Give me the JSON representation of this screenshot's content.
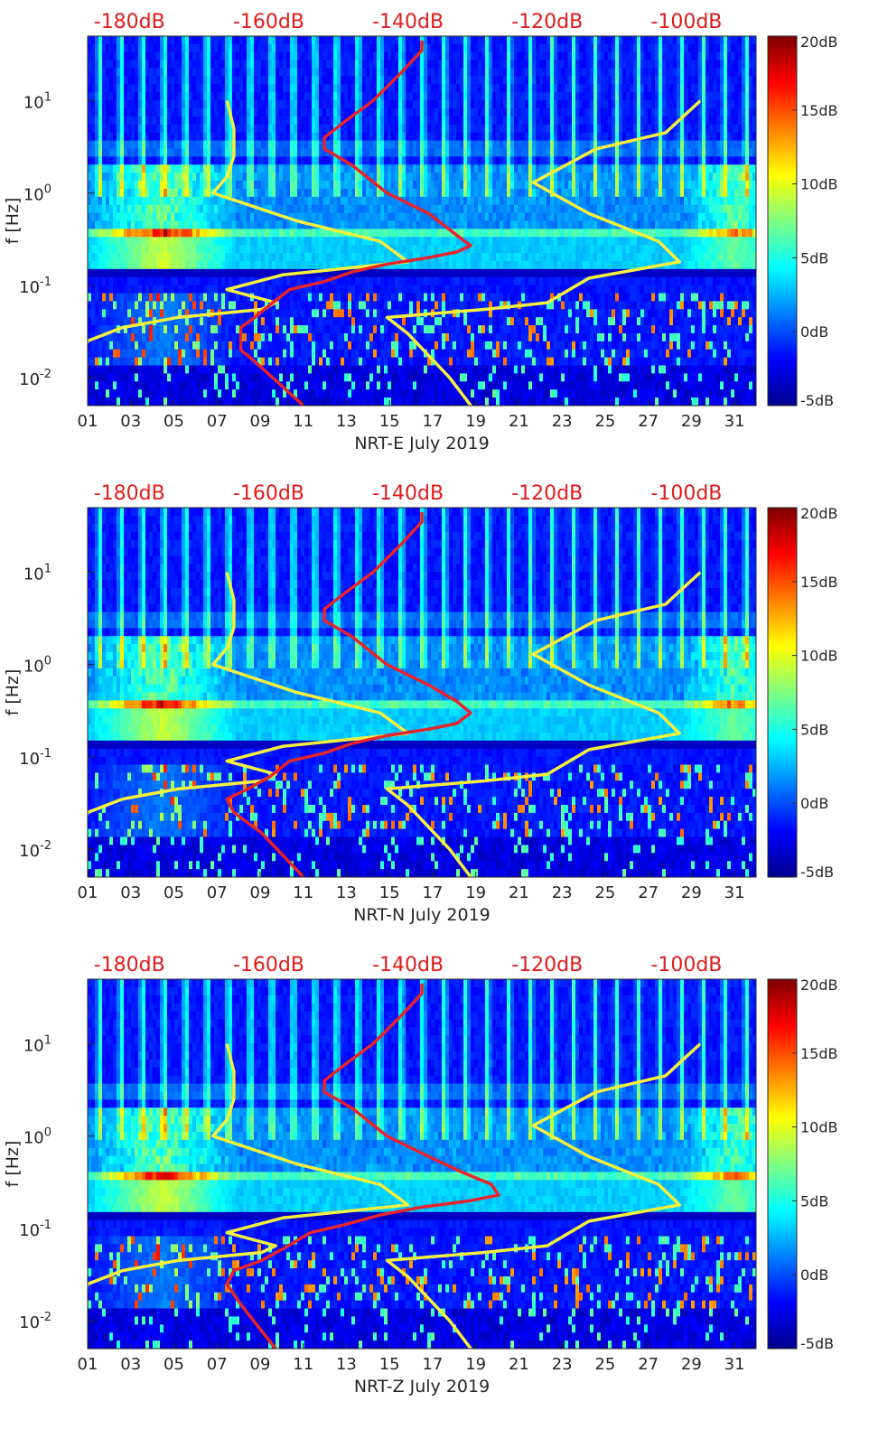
{
  "colors": {
    "red_curve": "#e8242a",
    "yellow_curve": "#f5f03c",
    "top_axis_text": "#e01b1b",
    "axis_text": "#262626",
    "colormap": [
      "#00008f",
      "#0000ff",
      "#0080ff",
      "#00ffff",
      "#80ff80",
      "#ffff00",
      "#ff8000",
      "#ff0000",
      "#800000"
    ]
  },
  "chart_data": [
    {
      "type": "heatmap",
      "panel": "NRT-E",
      "xlabel": "NRT-E July 2019",
      "ylabel": "f [Hz]",
      "x_ticks": [
        "01",
        "03",
        "05",
        "07",
        "09",
        "11",
        "13",
        "15",
        "17",
        "19",
        "21",
        "23",
        "25",
        "27",
        "29",
        "31"
      ],
      "y_ticks": [
        {
          "f": 0.01,
          "base": "10",
          "exp": "-2"
        },
        {
          "f": 0.1,
          "base": "10",
          "exp": "-1"
        },
        {
          "f": 1,
          "base": "10",
          "exp": "0"
        },
        {
          "f": 10,
          "base": "10",
          "exp": "1"
        }
      ],
      "top_ticks": [
        {
          "db": -180,
          "label": "-180dB"
        },
        {
          "db": -160,
          "label": "-160dB"
        },
        {
          "db": -140,
          "label": "-140dB"
        },
        {
          "db": -120,
          "label": "-120dB"
        },
        {
          "db": -100,
          "label": "-100dB"
        }
      ],
      "colorbar": {
        "min": -5,
        "max": 20,
        "ticks": [
          "20dB",
          "15dB",
          "10dB",
          "5dB",
          "0dB",
          "-5dB"
        ],
        "tick_values": [
          20,
          15,
          10,
          5,
          0,
          -5
        ]
      },
      "xlim": [
        1,
        32
      ],
      "ylim": [
        0.005,
        50
      ],
      "db_lim": [
        -186,
        -90
      ],
      "red_curve": [
        [
          -155,
          0.005
        ],
        [
          -162,
          0.015
        ],
        [
          -164,
          0.02
        ],
        [
          -164,
          0.035
        ],
        [
          -162,
          0.045
        ],
        [
          -160,
          0.06
        ],
        [
          -157,
          0.09
        ],
        [
          -152,
          0.11
        ],
        [
          -148,
          0.14
        ],
        [
          -143,
          0.17
        ],
        [
          -137,
          0.2
        ],
        [
          -133,
          0.23
        ],
        [
          -131,
          0.27
        ],
        [
          -133,
          0.35
        ],
        [
          -137,
          0.6
        ],
        [
          -143,
          1
        ],
        [
          -148,
          2
        ],
        [
          -152,
          3
        ],
        [
          -152,
          4
        ],
        [
          -149,
          6
        ],
        [
          -145,
          10
        ],
        [
          -141,
          20
        ],
        [
          -138,
          35
        ],
        [
          -138,
          45
        ]
      ],
      "yellow_curves": [
        [
          [
            -186,
            0.004
          ],
          [
            -187,
            0.01
          ],
          [
            -187,
            0.015
          ],
          [
            -186,
            0.025
          ],
          [
            -181,
            0.035
          ],
          [
            -173,
            0.045
          ],
          [
            -161,
            0.055
          ],
          [
            -159,
            0.065
          ],
          [
            -166,
            0.09
          ],
          [
            -158,
            0.13
          ],
          [
            -140,
            0.18
          ],
          [
            -144,
            0.3
          ],
          [
            -156,
            0.5
          ],
          [
            -168,
            1
          ],
          [
            -166,
            1.5
          ],
          [
            -165,
            2.5
          ],
          [
            -165,
            5
          ],
          [
            -166,
            10
          ]
        ],
        [
          [
            -130,
            0.004
          ],
          [
            -134,
            0.01
          ],
          [
            -140,
            0.03
          ],
          [
            -143,
            0.045
          ],
          [
            -129,
            0.055
          ],
          [
            -120,
            0.065
          ],
          [
            -114,
            0.12
          ],
          [
            -101,
            0.18
          ],
          [
            -104,
            0.3
          ],
          [
            -114,
            0.6
          ],
          [
            -122,
            1.3
          ],
          [
            -113,
            3
          ],
          [
            -103,
            4.5
          ],
          [
            -98,
            10
          ]
        ]
      ]
    },
    {
      "type": "heatmap",
      "panel": "NRT-N",
      "xlabel": "NRT-N July 2019",
      "ylabel": "f [Hz]",
      "x_ticks": [
        "01",
        "03",
        "05",
        "07",
        "09",
        "11",
        "13",
        "15",
        "17",
        "19",
        "21",
        "23",
        "25",
        "27",
        "29",
        "31"
      ],
      "y_ticks": [
        {
          "f": 0.01,
          "base": "10",
          "exp": "-2"
        },
        {
          "f": 0.1,
          "base": "10",
          "exp": "-1"
        },
        {
          "f": 1,
          "base": "10",
          "exp": "0"
        },
        {
          "f": 10,
          "base": "10",
          "exp": "1"
        }
      ],
      "top_ticks": [
        {
          "db": -180,
          "label": "-180dB"
        },
        {
          "db": -160,
          "label": "-160dB"
        },
        {
          "db": -140,
          "label": "-140dB"
        },
        {
          "db": -120,
          "label": "-120dB"
        },
        {
          "db": -100,
          "label": "-100dB"
        }
      ],
      "colorbar": {
        "min": -5,
        "max": 20,
        "ticks": [
          "20dB",
          "15dB",
          "10dB",
          "5dB",
          "0dB",
          "-5dB"
        ],
        "tick_values": [
          20,
          15,
          10,
          5,
          0,
          -5
        ]
      },
      "xlim": [
        1,
        32
      ],
      "ylim": [
        0.005,
        50
      ],
      "db_lim": [
        -186,
        -90
      ],
      "red_curve": [
        [
          -155,
          0.005
        ],
        [
          -161,
          0.015
        ],
        [
          -165,
          0.025
        ],
        [
          -166,
          0.035
        ],
        [
          -163,
          0.045
        ],
        [
          -160,
          0.06
        ],
        [
          -157,
          0.09
        ],
        [
          -152,
          0.11
        ],
        [
          -148,
          0.14
        ],
        [
          -143,
          0.17
        ],
        [
          -137,
          0.2
        ],
        [
          -133,
          0.23
        ],
        [
          -131,
          0.3
        ],
        [
          -133,
          0.4
        ],
        [
          -137,
          0.6
        ],
        [
          -143,
          1
        ],
        [
          -148,
          2
        ],
        [
          -152,
          3
        ],
        [
          -152,
          4
        ],
        [
          -149,
          6
        ],
        [
          -145,
          10
        ],
        [
          -141,
          20
        ],
        [
          -138,
          35
        ],
        [
          -138,
          45
        ]
      ],
      "yellow_curves": [
        [
          [
            -186,
            0.004
          ],
          [
            -187,
            0.01
          ],
          [
            -187,
            0.015
          ],
          [
            -186,
            0.025
          ],
          [
            -181,
            0.035
          ],
          [
            -173,
            0.045
          ],
          [
            -161,
            0.055
          ],
          [
            -159,
            0.065
          ],
          [
            -166,
            0.09
          ],
          [
            -158,
            0.13
          ],
          [
            -140,
            0.18
          ],
          [
            -144,
            0.3
          ],
          [
            -156,
            0.5
          ],
          [
            -168,
            1
          ],
          [
            -166,
            1.5
          ],
          [
            -165,
            2.5
          ],
          [
            -165,
            5
          ],
          [
            -166,
            10
          ]
        ],
        [
          [
            -130,
            0.004
          ],
          [
            -134,
            0.01
          ],
          [
            -140,
            0.03
          ],
          [
            -143,
            0.045
          ],
          [
            -129,
            0.055
          ],
          [
            -120,
            0.065
          ],
          [
            -114,
            0.12
          ],
          [
            -101,
            0.18
          ],
          [
            -104,
            0.3
          ],
          [
            -114,
            0.6
          ],
          [
            -122,
            1.3
          ],
          [
            -113,
            3
          ],
          [
            -103,
            4.5
          ],
          [
            -98,
            10
          ]
        ]
      ]
    },
    {
      "type": "heatmap",
      "panel": "NRT-Z",
      "xlabel": "NRT-Z July 2019",
      "ylabel": "f [Hz]",
      "x_ticks": [
        "01",
        "03",
        "05",
        "07",
        "09",
        "11",
        "13",
        "15",
        "17",
        "19",
        "21",
        "23",
        "25",
        "27",
        "29",
        "31"
      ],
      "y_ticks": [
        {
          "f": 0.01,
          "base": "10",
          "exp": "-2"
        },
        {
          "f": 0.1,
          "base": "10",
          "exp": "-1"
        },
        {
          "f": 1,
          "base": "10",
          "exp": "0"
        },
        {
          "f": 10,
          "base": "10",
          "exp": "1"
        }
      ],
      "top_ticks": [
        {
          "db": -180,
          "label": "-180dB"
        },
        {
          "db": -160,
          "label": "-160dB"
        },
        {
          "db": -140,
          "label": "-140dB"
        },
        {
          "db": -120,
          "label": "-120dB"
        },
        {
          "db": -100,
          "label": "-100dB"
        }
      ],
      "colorbar": {
        "min": -5,
        "max": 20,
        "ticks": [
          "20dB",
          "15dB",
          "10dB",
          "5dB",
          "0dB",
          "-5dB"
        ],
        "tick_values": [
          20,
          15,
          10,
          5,
          0,
          -5
        ]
      },
      "xlim": [
        1,
        32
      ],
      "ylim": [
        0.005,
        50
      ],
      "db_lim": [
        -186,
        -90
      ],
      "red_curve": [
        [
          -159,
          0.005
        ],
        [
          -164,
          0.015
        ],
        [
          -166,
          0.025
        ],
        [
          -165,
          0.035
        ],
        [
          -161,
          0.045
        ],
        [
          -158,
          0.06
        ],
        [
          -154,
          0.09
        ],
        [
          -149,
          0.11
        ],
        [
          -144,
          0.14
        ],
        [
          -138,
          0.17
        ],
        [
          -131,
          0.2
        ],
        [
          -127,
          0.23
        ],
        [
          -128,
          0.3
        ],
        [
          -132,
          0.4
        ],
        [
          -137,
          0.6
        ],
        [
          -143,
          1
        ],
        [
          -148,
          2
        ],
        [
          -152,
          3
        ],
        [
          -152,
          4
        ],
        [
          -149,
          6
        ],
        [
          -145,
          10
        ],
        [
          -141,
          20
        ],
        [
          -138,
          35
        ],
        [
          -138,
          45
        ]
      ],
      "yellow_curves": [
        [
          [
            -186,
            0.004
          ],
          [
            -187,
            0.01
          ],
          [
            -187,
            0.015
          ],
          [
            -186,
            0.025
          ],
          [
            -181,
            0.035
          ],
          [
            -173,
            0.045
          ],
          [
            -161,
            0.055
          ],
          [
            -159,
            0.065
          ],
          [
            -166,
            0.09
          ],
          [
            -158,
            0.13
          ],
          [
            -140,
            0.18
          ],
          [
            -144,
            0.3
          ],
          [
            -156,
            0.5
          ],
          [
            -168,
            1
          ],
          [
            -166,
            1.5
          ],
          [
            -165,
            2.5
          ],
          [
            -165,
            5
          ],
          [
            -166,
            10
          ]
        ],
        [
          [
            -130,
            0.004
          ],
          [
            -134,
            0.01
          ],
          [
            -140,
            0.03
          ],
          [
            -143,
            0.045
          ],
          [
            -129,
            0.055
          ],
          [
            -120,
            0.065
          ],
          [
            -114,
            0.12
          ],
          [
            -101,
            0.18
          ],
          [
            -104,
            0.3
          ],
          [
            -114,
            0.6
          ],
          [
            -122,
            1.3
          ],
          [
            -113,
            3
          ],
          [
            -103,
            4.5
          ],
          [
            -98,
            10
          ]
        ]
      ]
    }
  ]
}
